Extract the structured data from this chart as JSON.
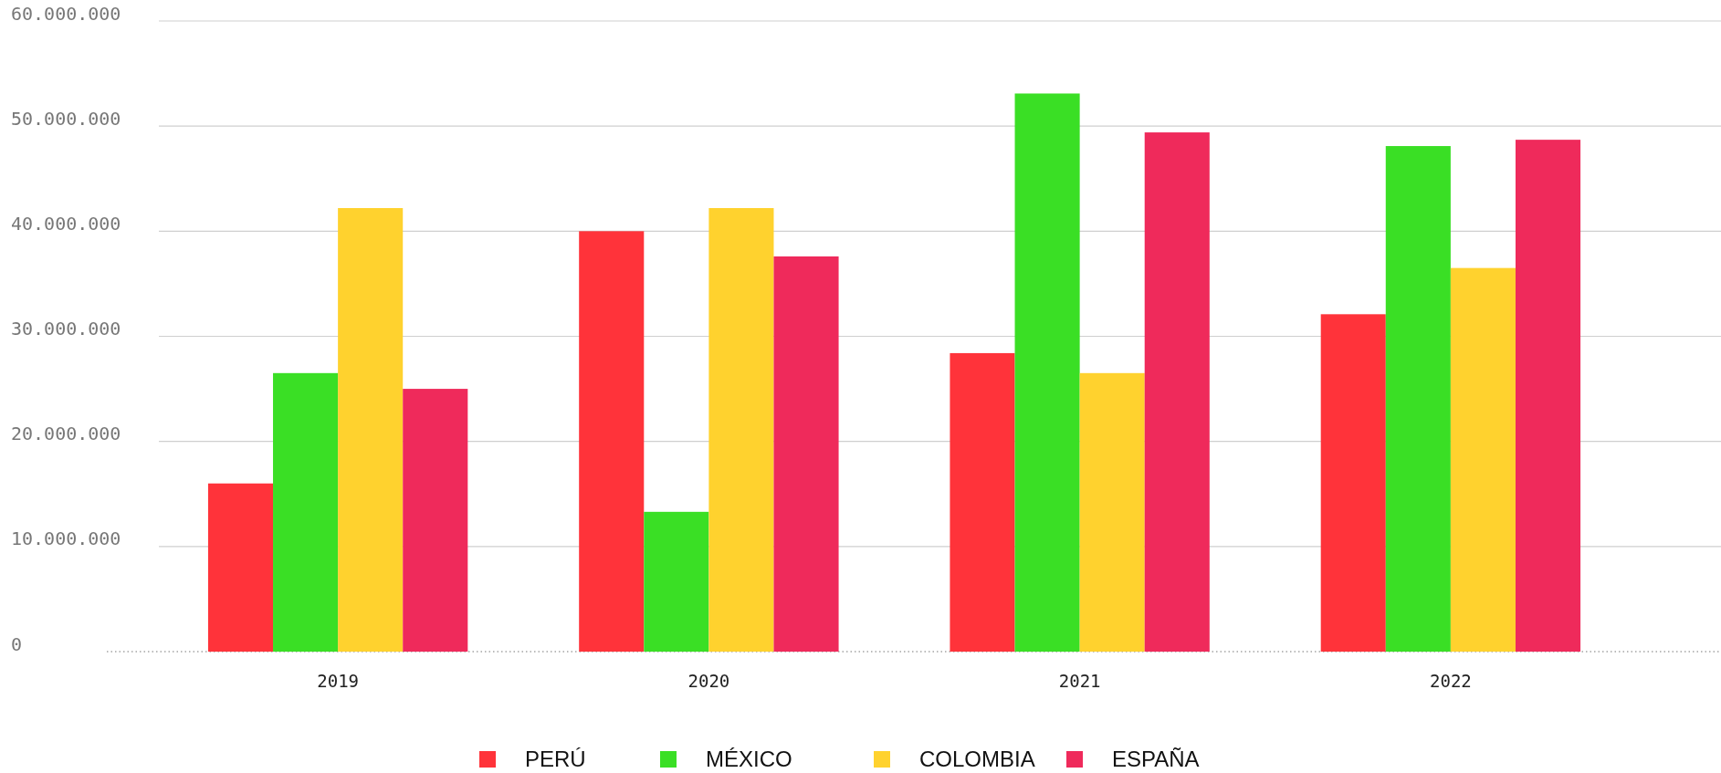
{
  "chart_data": {
    "type": "bar",
    "categories": [
      "2019",
      "2020",
      "2021",
      "2022"
    ],
    "series": [
      {
        "name": "PERÚ",
        "color": "#ff333a",
        "values": [
          16000000,
          40000000,
          28400000,
          32100000
        ]
      },
      {
        "name": "MÉXICO",
        "color": "#3adf25",
        "values": [
          26500000,
          13300000,
          53100000,
          48100000
        ]
      },
      {
        "name": "COLOMBIA",
        "color": "#ffd22e",
        "values": [
          42200000,
          42200000,
          26500000,
          36500000
        ]
      },
      {
        "name": "ESPAÑA",
        "color": "#ef2a5b",
        "values": [
          25000000,
          37600000,
          49400000,
          48700000
        ]
      }
    ],
    "ylim": [
      0,
      60000000
    ],
    "yticks": [
      {
        "value": 0,
        "label": "0"
      },
      {
        "value": 10000000,
        "label": "10.000.000"
      },
      {
        "value": 20000000,
        "label": "20.000.000"
      },
      {
        "value": 30000000,
        "label": "30.000.000"
      },
      {
        "value": 40000000,
        "label": "40.000.000"
      },
      {
        "value": 50000000,
        "label": "50.000.000"
      },
      {
        "value": 60000000,
        "label": "60.000.000"
      }
    ],
    "grid": "y",
    "legend": "bottom"
  }
}
